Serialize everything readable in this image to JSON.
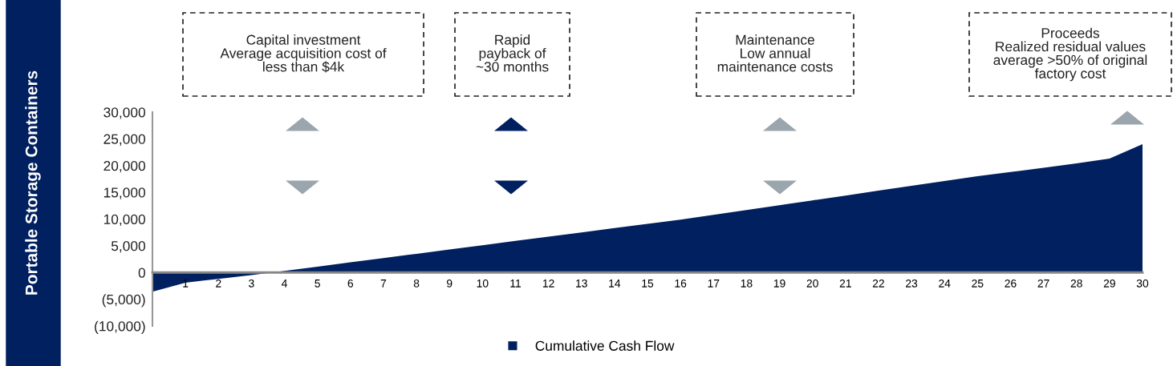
{
  "chart_data": {
    "type": "area",
    "ylabel": "Portable Storage Containers",
    "categories": [
      null,
      "1",
      "2",
      "3",
      "4",
      "5",
      "6",
      "7",
      "8",
      "9",
      "10",
      "11",
      "12",
      "13",
      "14",
      "15",
      "16",
      "17",
      "18",
      "19",
      "20",
      "21",
      "22",
      "23",
      "24",
      "25",
      "26",
      "27",
      "28",
      "29",
      "30"
    ],
    "series": [
      {
        "name": "Cumulative Cash Flow",
        "color": "#002060",
        "values": [
          -3600,
          -1900,
          -1200,
          -500,
          300,
          1100,
          1900,
          2700,
          3500,
          4300,
          5100,
          5900,
          6700,
          7500,
          8300,
          9100,
          9900,
          10800,
          11700,
          12600,
          13500,
          14400,
          15300,
          16200,
          17100,
          18000,
          18800,
          19600,
          20400,
          21300,
          24000
        ]
      }
    ],
    "ylim": [
      -10000,
      30000
    ],
    "yticks": [
      {
        "value": -10000,
        "label": "(10,000)"
      },
      {
        "value": -5000,
        "label": "(5,000)"
      },
      {
        "value": 0,
        "label": "0"
      },
      {
        "value": 5000,
        "label": "5,000"
      },
      {
        "value": 10000,
        "label": "10,000"
      },
      {
        "value": 15000,
        "label": "15,000"
      },
      {
        "value": 20000,
        "label": "20,000"
      },
      {
        "value": 25000,
        "label": "25,000"
      },
      {
        "value": 30000,
        "label": "30,000"
      }
    ],
    "annotations": [
      "Capital investment\nAverage acquisition cost of\nless than $4k",
      "Rapid\npayback of\n~30 months",
      "Maintenance\nLow annual\nmaintenance costs",
      "Proceeds\nRealized residual values\naverage >50% of original\nfactory cost"
    ],
    "grid": false,
    "legend": "bottom"
  }
}
